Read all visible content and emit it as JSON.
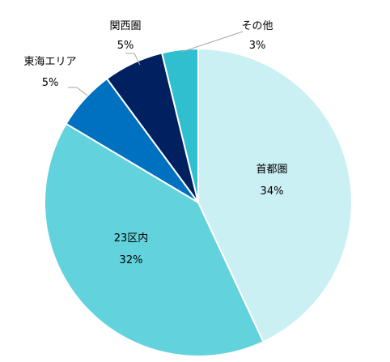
{
  "chart_data": {
    "type": "pie",
    "title": "",
    "slices": [
      {
        "label": "首都圏",
        "value": 34,
        "display": "34%",
        "color": "#cbf0f3"
      },
      {
        "label": "23区内",
        "value": 32,
        "display": "32%",
        "color": "#62d3dc"
      },
      {
        "label": "東海エリア",
        "value": 5,
        "display": "5%",
        "color": "#0070c0"
      },
      {
        "label": "関西圏",
        "value": 5,
        "display": "5%",
        "color": "#002060"
      },
      {
        "label": "その他",
        "value": 3,
        "display": "3%",
        "color": "#2fbfce"
      }
    ],
    "start_angle": "12 o'clock",
    "direction": "clockwise",
    "border_color": "#ffffff",
    "leader_line_color": "#a6a6a6",
    "legend": "none"
  }
}
